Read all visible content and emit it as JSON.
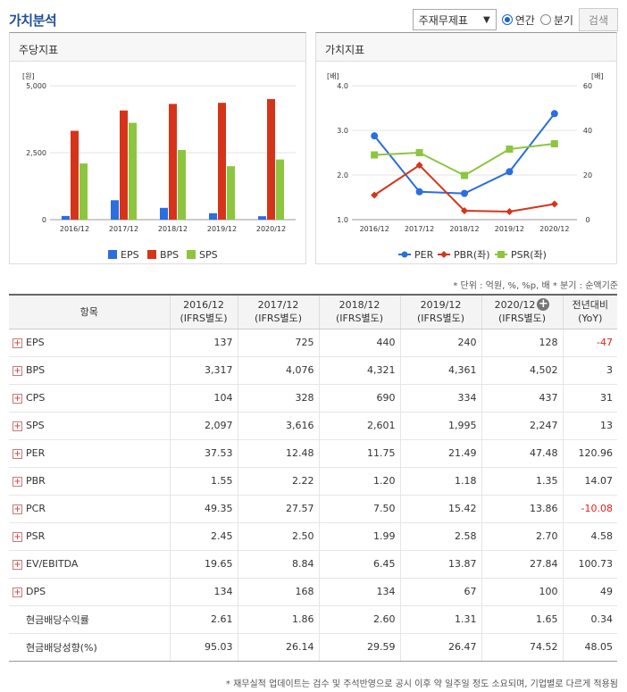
{
  "header": {
    "title": "가치분석",
    "select_value": "주재무제표",
    "radio_annual": "연간",
    "radio_quarter": "분기",
    "search_label": "검색"
  },
  "panel1": {
    "title": "주당지표",
    "unit": "[원]"
  },
  "panel2": {
    "title": "가치지표",
    "unit_left": "[배]",
    "unit_right": "[배]"
  },
  "chart_data": [
    {
      "type": "bar",
      "categories": [
        "2016/12",
        "2017/12",
        "2018/12",
        "2019/12",
        "2020/12"
      ],
      "series": [
        {
          "name": "EPS",
          "color": "#2a6ee0",
          "values": [
            137,
            725,
            440,
            240,
            128
          ]
        },
        {
          "name": "BPS",
          "color": "#d6341a",
          "values": [
            3317,
            4076,
            4321,
            4361,
            4502
          ]
        },
        {
          "name": "SPS",
          "color": "#8cc63f",
          "values": [
            2097,
            3616,
            2601,
            1995,
            2247
          ]
        }
      ],
      "ylabel": "[원]",
      "ylim": [
        0,
        5000
      ],
      "yticks": [
        "0",
        "2,500",
        "5,000"
      ],
      "legend": "bottom"
    },
    {
      "type": "line",
      "categories": [
        "2016/12",
        "2017/12",
        "2018/12",
        "2019/12",
        "2020/12"
      ],
      "series": [
        {
          "name": "PER",
          "color": "#2a6ee0",
          "axis": "right",
          "values": [
            37.53,
            12.48,
            11.75,
            21.49,
            47.48
          ]
        },
        {
          "name": "PBR(좌)",
          "color": "#d6341a",
          "axis": "left",
          "values": [
            1.55,
            2.22,
            1.2,
            1.18,
            1.35
          ]
        },
        {
          "name": "PSR(좌)",
          "color": "#8cc63f",
          "axis": "left",
          "values": [
            2.45,
            2.5,
            1.99,
            2.58,
            2.7
          ]
        }
      ],
      "ylabel_left": "[배]",
      "ylabel_right": "[배]",
      "ylim_left": [
        1.0,
        4.0
      ],
      "ylim_right": [
        0,
        60
      ],
      "yticks_left": [
        "1.0",
        "2.0",
        "3.0",
        "4.0"
      ],
      "yticks_right": [
        "0",
        "20",
        "40",
        "60"
      ],
      "legend": "bottom"
    }
  ],
  "note": "* 단위 : 억원, %, %p, 배    * 분기 : 순액기준",
  "table": {
    "headers": [
      {
        "l1": "항목",
        "l2": ""
      },
      {
        "l1": "2016/12",
        "l2": "(IFRS별도)"
      },
      {
        "l1": "2017/12",
        "l2": "(IFRS별도)"
      },
      {
        "l1": "2018/12",
        "l2": "(IFRS별도)"
      },
      {
        "l1": "2019/12",
        "l2": "(IFRS별도)"
      },
      {
        "l1": "2020/12",
        "l2": "(IFRS별도)"
      },
      {
        "l1": "전년대비",
        "l2": "(YoY)"
      }
    ],
    "rows": [
      {
        "name": "EPS",
        "plus": true,
        "vals": [
          "137",
          "725",
          "440",
          "240",
          "128",
          "-47"
        ],
        "neg": true
      },
      {
        "name": "BPS",
        "plus": true,
        "vals": [
          "3,317",
          "4,076",
          "4,321",
          "4,361",
          "4,502",
          "3"
        ],
        "neg": false
      },
      {
        "name": "CPS",
        "plus": true,
        "vals": [
          "104",
          "328",
          "690",
          "334",
          "437",
          "31"
        ],
        "neg": false
      },
      {
        "name": "SPS",
        "plus": true,
        "vals": [
          "2,097",
          "3,616",
          "2,601",
          "1,995",
          "2,247",
          "13"
        ],
        "neg": false
      },
      {
        "name": "PER",
        "plus": true,
        "vals": [
          "37.53",
          "12.48",
          "11.75",
          "21.49",
          "47.48",
          "120.96"
        ],
        "neg": false
      },
      {
        "name": "PBR",
        "plus": true,
        "vals": [
          "1.55",
          "2.22",
          "1.20",
          "1.18",
          "1.35",
          "14.07"
        ],
        "neg": false
      },
      {
        "name": "PCR",
        "plus": true,
        "vals": [
          "49.35",
          "27.57",
          "7.50",
          "15.42",
          "13.86",
          "-10.08"
        ],
        "neg": true
      },
      {
        "name": "PSR",
        "plus": true,
        "vals": [
          "2.45",
          "2.50",
          "1.99",
          "2.58",
          "2.70",
          "4.58"
        ],
        "neg": false
      },
      {
        "name": "EV/EBITDA",
        "plus": true,
        "vals": [
          "19.65",
          "8.84",
          "6.45",
          "13.87",
          "27.84",
          "100.73"
        ],
        "neg": false
      },
      {
        "name": "DPS",
        "plus": true,
        "vals": [
          "134",
          "168",
          "134",
          "67",
          "100",
          "49"
        ],
        "neg": false
      },
      {
        "name": "현금배당수익률",
        "plus": false,
        "vals": [
          "2.61",
          "1.86",
          "2.60",
          "1.31",
          "1.65",
          "0.34"
        ],
        "neg": false
      },
      {
        "name": "현금배당성향(%)",
        "plus": false,
        "vals": [
          "95.03",
          "26.14",
          "29.59",
          "26.47",
          "74.52",
          "48.05"
        ],
        "neg": false
      }
    ]
  },
  "footer": "* 재무실적 업데이트는 검수 및 주석반영으로 공시 이후 약 일주일 정도 소요되며, 기업별로 다르게 적용됨"
}
